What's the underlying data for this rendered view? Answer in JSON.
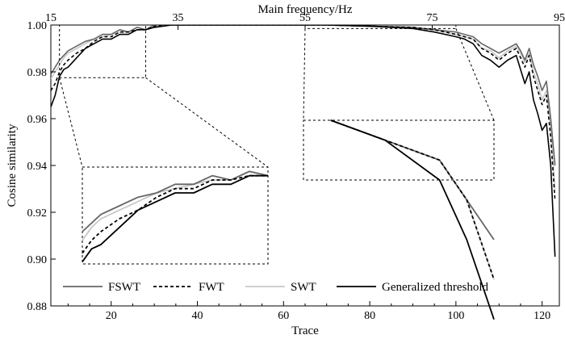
{
  "chart_data": {
    "type": "line",
    "xlabel": "Trace",
    "ylabel": "Cosine similarity",
    "x2label": "Main frequency/Hz",
    "xlim": [
      6,
      124
    ],
    "ylim": [
      0.88,
      1.0
    ],
    "x_ticks": [
      "20",
      "40",
      "60",
      "80",
      "100",
      "120"
    ],
    "y_ticks": [
      "0.88",
      "0.90",
      "0.92",
      "0.94",
      "0.96",
      "0.98",
      "1.00"
    ],
    "top_axis_ticks": [
      "15",
      "35",
      "55",
      "75",
      "95"
    ],
    "legend_position": "bottom",
    "grid": false,
    "series": [
      {
        "name": "FSWT",
        "color": "#666666",
        "dash": "none",
        "x": [
          6,
          7,
          8,
          9,
          10,
          12,
          14,
          16,
          18,
          20,
          22,
          24,
          26,
          28,
          30,
          32,
          34,
          36,
          40,
          50,
          60,
          70,
          80,
          90,
          95,
          100,
          102,
          104,
          106,
          108,
          110,
          112,
          114,
          115,
          116,
          117,
          118,
          119,
          120,
          121,
          122,
          123
        ],
        "y": [
          0.979,
          0.982,
          0.985,
          0.987,
          0.989,
          0.991,
          0.993,
          0.994,
          0.996,
          0.996,
          0.998,
          0.997,
          0.999,
          0.998,
          1.0,
          1.0,
          1.0,
          1.0,
          1.0,
          1.0,
          1.0,
          1.0,
          0.9995,
          0.999,
          0.998,
          0.997,
          0.996,
          0.995,
          0.992,
          0.99,
          0.988,
          0.99,
          0.992,
          0.989,
          0.985,
          0.99,
          0.983,
          0.978,
          0.972,
          0.976,
          0.96,
          0.94
        ]
      },
      {
        "name": "FWT",
        "color": "#000000",
        "dash": "4,3",
        "x": [
          6,
          7,
          8,
          9,
          10,
          12,
          14,
          16,
          18,
          20,
          22,
          24,
          26,
          28,
          30,
          32,
          34,
          36,
          40,
          50,
          60,
          70,
          80,
          90,
          95,
          100,
          102,
          104,
          106,
          108,
          110,
          112,
          114,
          115,
          116,
          117,
          118,
          119,
          120,
          121,
          122,
          123
        ],
        "y": [
          0.972,
          0.975,
          0.98,
          0.983,
          0.985,
          0.988,
          0.99,
          0.993,
          0.995,
          0.995,
          0.997,
          0.997,
          0.998,
          0.998,
          0.9995,
          1.0,
          1.0,
          1.0,
          1.0,
          1.0,
          1.0,
          1.0,
          0.9995,
          0.999,
          0.998,
          0.996,
          0.995,
          0.994,
          0.99,
          0.988,
          0.985,
          0.988,
          0.99,
          0.986,
          0.982,
          0.987,
          0.978,
          0.972,
          0.966,
          0.97,
          0.952,
          0.925
        ]
      },
      {
        "name": "SWT",
        "color": "#c8c8c8",
        "dash": "none",
        "x": [
          6,
          7,
          8,
          9,
          10,
          12,
          14,
          16,
          18,
          20,
          22,
          24,
          26,
          28,
          30,
          32,
          34,
          36,
          40,
          50,
          60,
          70,
          80,
          90,
          95,
          100,
          102,
          104,
          106,
          108,
          110,
          112,
          114,
          115,
          116,
          117,
          118,
          119,
          120,
          121,
          122,
          123
        ],
        "y": [
          0.977,
          0.98,
          0.983,
          0.986,
          0.988,
          0.99,
          0.992,
          0.994,
          0.995,
          0.996,
          0.997,
          0.997,
          0.999,
          0.998,
          0.9995,
          1.0,
          1.0,
          1.0,
          1.0,
          1.0,
          1.0,
          1.0,
          0.9995,
          0.999,
          0.998,
          0.996,
          0.995,
          0.994,
          0.99,
          0.989,
          0.986,
          0.989,
          0.991,
          0.988,
          0.984,
          0.988,
          0.98,
          0.975,
          0.968,
          0.972,
          0.956,
          0.93
        ]
      },
      {
        "name": "Generalized threshold",
        "color": "#000000",
        "dash": "none",
        "x": [
          6,
          7,
          8,
          9,
          10,
          12,
          14,
          16,
          18,
          20,
          22,
          24,
          26,
          28,
          30,
          32,
          34,
          36,
          40,
          50,
          60,
          70,
          80,
          90,
          95,
          100,
          102,
          104,
          106,
          108,
          110,
          112,
          114,
          115,
          116,
          117,
          118,
          119,
          120,
          121,
          122,
          123
        ],
        "y": [
          0.965,
          0.97,
          0.978,
          0.981,
          0.982,
          0.986,
          0.99,
          0.992,
          0.994,
          0.994,
          0.996,
          0.996,
          0.998,
          0.998,
          0.999,
          0.9995,
          1.0,
          1.0,
          1.0,
          1.0,
          1.0,
          1.0,
          0.9995,
          0.9985,
          0.997,
          0.995,
          0.994,
          0.992,
          0.987,
          0.985,
          0.982,
          0.985,
          0.987,
          0.981,
          0.975,
          0.98,
          0.968,
          0.962,
          0.955,
          0.958,
          0.94,
          0.901
        ]
      }
    ],
    "zoom_regions": [
      {
        "x_range": [
          8,
          28
        ],
        "y_range": [
          0.9775,
          1.0
        ]
      },
      {
        "x_range": [
          65,
          100
        ],
        "y_range": [
          0.9985,
          1.0
        ]
      }
    ]
  }
}
